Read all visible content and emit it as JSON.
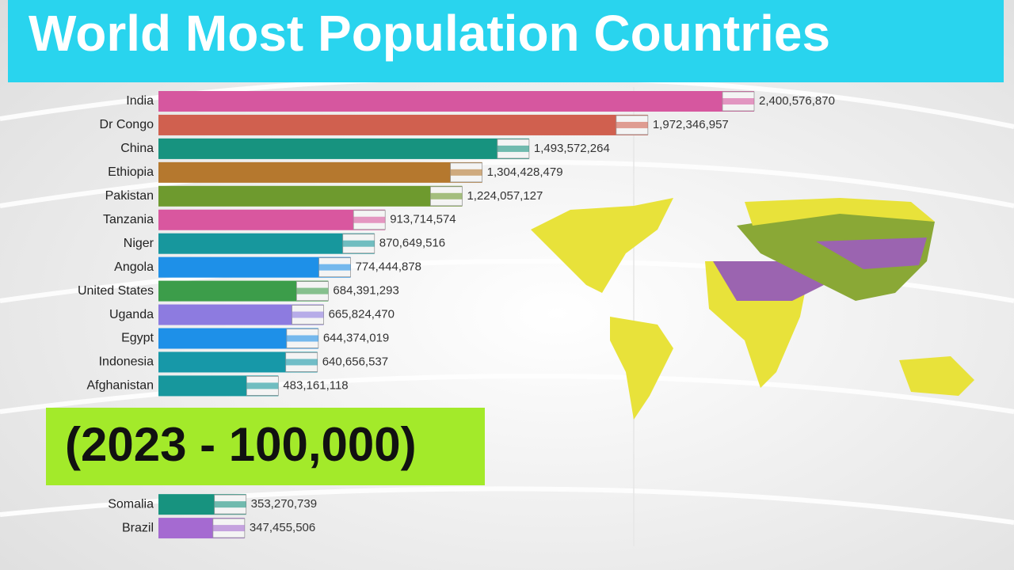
{
  "chart_data": {
    "type": "bar",
    "orientation": "horizontal",
    "title": "World Most Population Countries",
    "annotation": "(2023 - 100,000)",
    "categories": [
      "India",
      "Dr Congo",
      "China",
      "Ethiopia",
      "Pakistan",
      "Tanzania",
      "Niger",
      "Angola",
      "United States",
      "Uganda",
      "Egypt",
      "Indonesia",
      "Afghanistan",
      "Somalia",
      "Brazil"
    ],
    "values": [
      2400576870,
      1972346957,
      1493572264,
      1304428479,
      1224057127,
      913714574,
      870649516,
      774444878,
      684391293,
      665824470,
      644374019,
      640656537,
      483161118,
      353270739,
      347455506
    ],
    "value_labels": [
      "2,400,576,870",
      "1,972,346,957",
      "1,493,572,264",
      "1,304,428,479",
      "1,224,057,127",
      "913,714,574",
      "870,649,516",
      "774,444,878",
      "684,391,293",
      "665,824,470",
      "644,374,019",
      "640,656,537",
      "483,161,118",
      "353,270,739",
      "347,455,506"
    ],
    "colors": [
      "#d6579f",
      "#d0604f",
      "#17937f",
      "#b5782e",
      "#6e9a2e",
      "#d9579f",
      "#17979d",
      "#1e90e8",
      "#3c9d4a",
      "#8d7be0",
      "#1e90e8",
      "#1798a8",
      "#17979d",
      "#17937f",
      "#a56ad1"
    ]
  }
}
